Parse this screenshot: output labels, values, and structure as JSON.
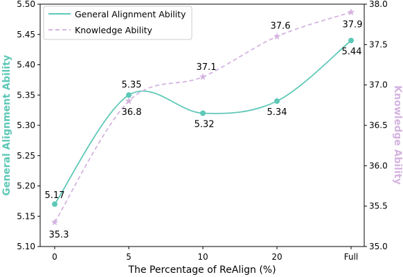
{
  "chart_data": {
    "type": "line",
    "categories": [
      "0",
      "5",
      "10",
      "20",
      "Full"
    ],
    "xlabel": "The Percentage of ReAlign (%)",
    "ylabel_left": "General Alignment Ability",
    "ylabel_right": "Knowledge Ability",
    "ylim_left": [
      5.1,
      5.5
    ],
    "ylim_right": [
      35.0,
      38.0
    ],
    "yticks_left": [
      "5.10",
      "5.15",
      "5.20",
      "5.25",
      "5.30",
      "5.35",
      "5.40",
      "5.45",
      "5.50"
    ],
    "yticks_right": [
      "35.0",
      "35.5",
      "36.0",
      "36.5",
      "37.0",
      "37.5",
      "38.0"
    ],
    "legend_position": "top-left",
    "grid": false,
    "series": [
      {
        "name": "General Alignment Ability",
        "axis": "left",
        "values": [
          5.17,
          5.35,
          5.32,
          5.34,
          5.44
        ],
        "labels": [
          "5.17",
          "5.35",
          "5.32",
          "5.34",
          "5.44"
        ],
        "color": "#5ec8b8",
        "style": "solid",
        "marker": "circle"
      },
      {
        "name": "Knowledge Ability",
        "axis": "right",
        "values": [
          35.3,
          36.8,
          37.1,
          37.6,
          37.9
        ],
        "labels": [
          "35.3",
          "36.8",
          "37.1",
          "37.6",
          "37.9"
        ],
        "color": "#d4b3e0",
        "style": "dashed",
        "marker": "star"
      }
    ]
  }
}
